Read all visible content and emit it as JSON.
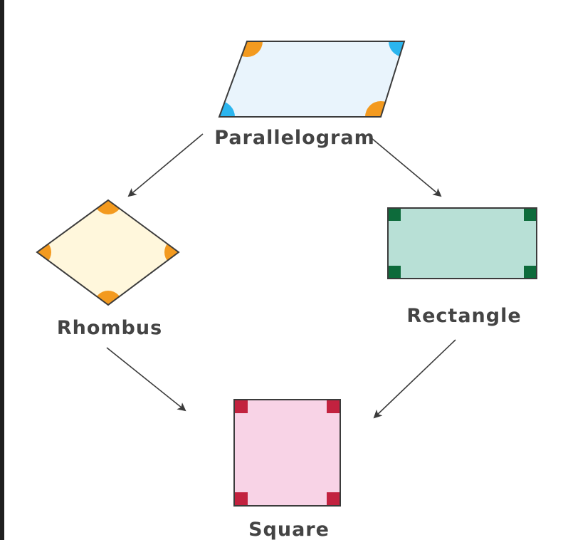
{
  "labels": {
    "parallelogram": "Parallelogram",
    "rhombus": "Rhombus",
    "rectangle": "Rectangle",
    "square": "Square"
  },
  "colors": {
    "parallelogram_fill": "#e9f4fc",
    "rhombus_fill": "#fff7dc",
    "rectangle_fill": "#b8e0d6",
    "square_fill": "#f8d3e6",
    "angle_orange": "#f39a1f",
    "angle_blue": "#2bb5ee",
    "right_angle_green": "#0d6b3b",
    "right_angle_red": "#c2223f",
    "stroke": "#3b3b3b",
    "arrow": "#3b3b3b",
    "text": "#444444"
  }
}
